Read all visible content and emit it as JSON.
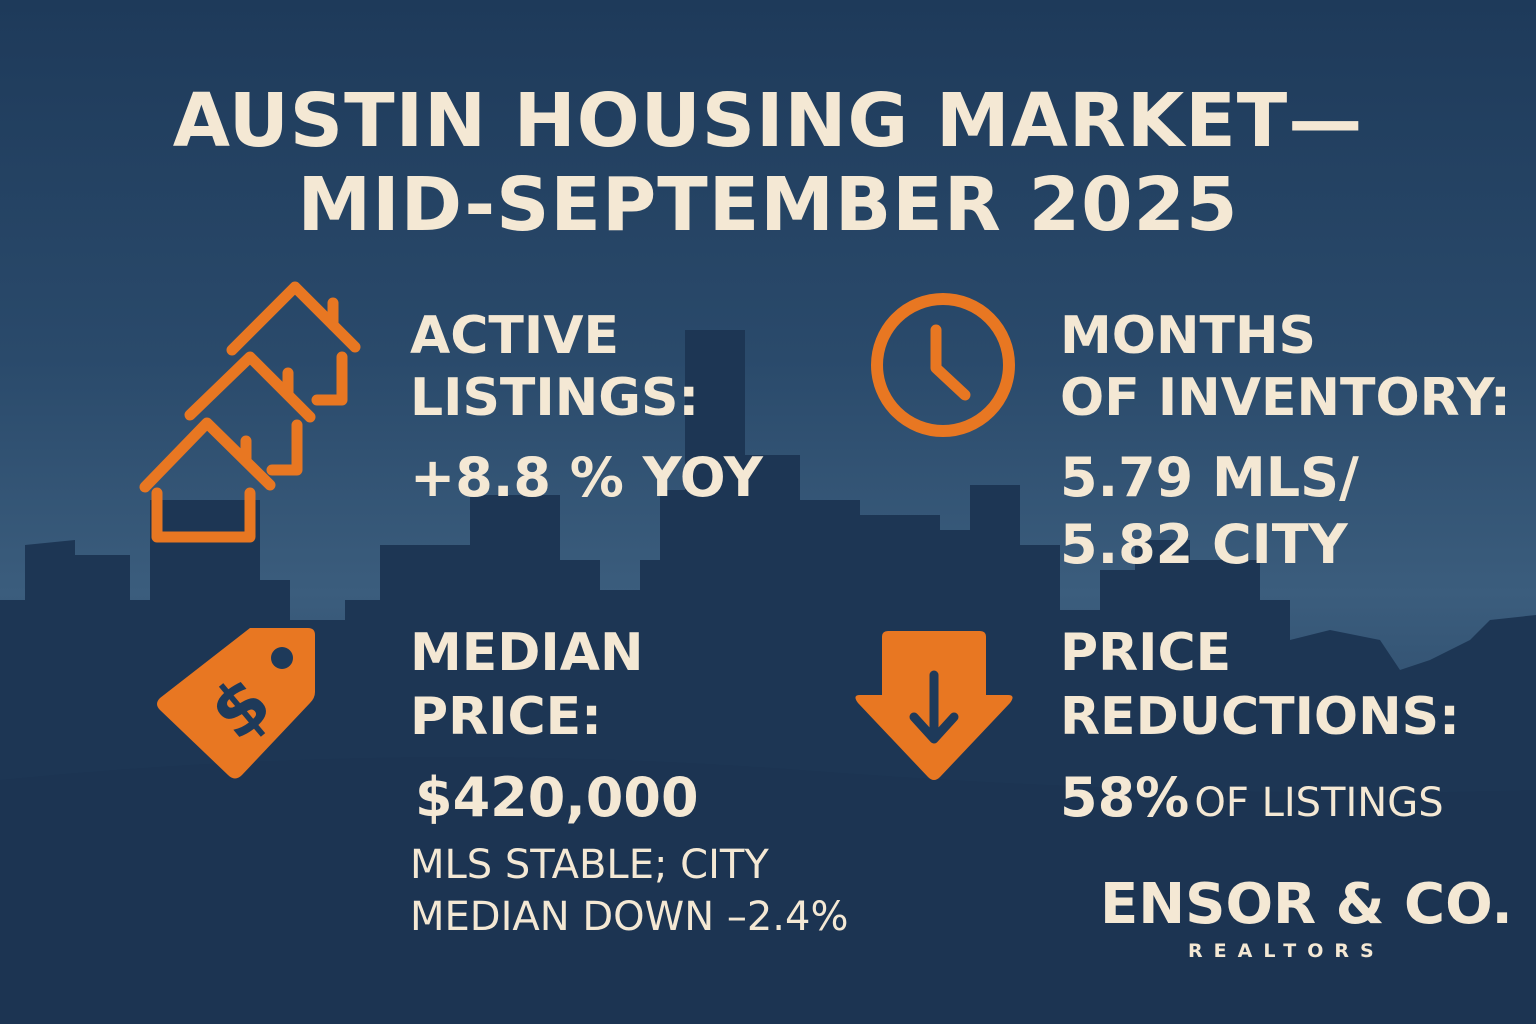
{
  "title": {
    "line1": "AUSTIN HOUSING MARKET—",
    "line2": "MID-SEPTEMBER 2025"
  },
  "colors": {
    "accent": "#e87722",
    "text": "#f4e8d4",
    "background": "#1e3a5a"
  },
  "stats": {
    "active_listings": {
      "icon": "houses-icon",
      "label1": "ACTIVE",
      "label2": "LISTINGS:",
      "value": "+8.8 % YOY"
    },
    "months_inventory": {
      "icon": "clock-icon",
      "label1": "MONTHS",
      "label2": "OF INVENTORY:",
      "value1": "5.79 MLS/",
      "value2": "5.82 CITY"
    },
    "median_price": {
      "icon": "price-tag-icon",
      "label1": "MEDIAN",
      "label2": "PRICE:",
      "value": "$420,000",
      "note1": "MLS STABLE; CITY",
      "note2": "MEDIAN DOWN –2.4%"
    },
    "price_reductions": {
      "icon": "down-arrow-icon",
      "label1": "PRICE",
      "label2": "REDUCTIONS:",
      "value": "58%",
      "value_suffix": "OF LISTINGS"
    }
  },
  "brand": {
    "name": "ENSOR & CO.",
    "tagline": "REALTORS"
  }
}
